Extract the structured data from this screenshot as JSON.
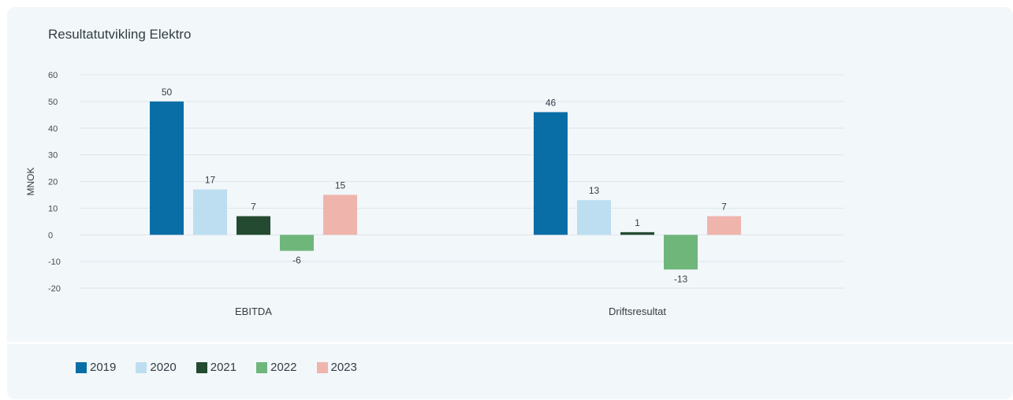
{
  "title": "Resultatutvikling Elektro",
  "chart_data": {
    "type": "bar",
    "categories": [
      "EBITDA",
      "Driftsresultat"
    ],
    "series": [
      {
        "name": "2019",
        "values": [
          50,
          46
        ],
        "color": "#0a6ea6"
      },
      {
        "name": "2020",
        "values": [
          17,
          13
        ],
        "color": "#bcdef0"
      },
      {
        "name": "2021",
        "values": [
          7,
          1
        ],
        "color": "#244a31"
      },
      {
        "name": "2022",
        "values": [
          -6,
          -13
        ],
        "color": "#6fb67b"
      },
      {
        "name": "2023",
        "values": [
          15,
          7
        ],
        "color": "#efb5ad"
      }
    ],
    "ylabel": "MNOK",
    "xlabel": "",
    "ylim": [
      -20,
      60
    ],
    "yticks": [
      60,
      50,
      40,
      30,
      20,
      10,
      0,
      -10,
      -20
    ],
    "grid": true,
    "legend": "bottom-left"
  }
}
